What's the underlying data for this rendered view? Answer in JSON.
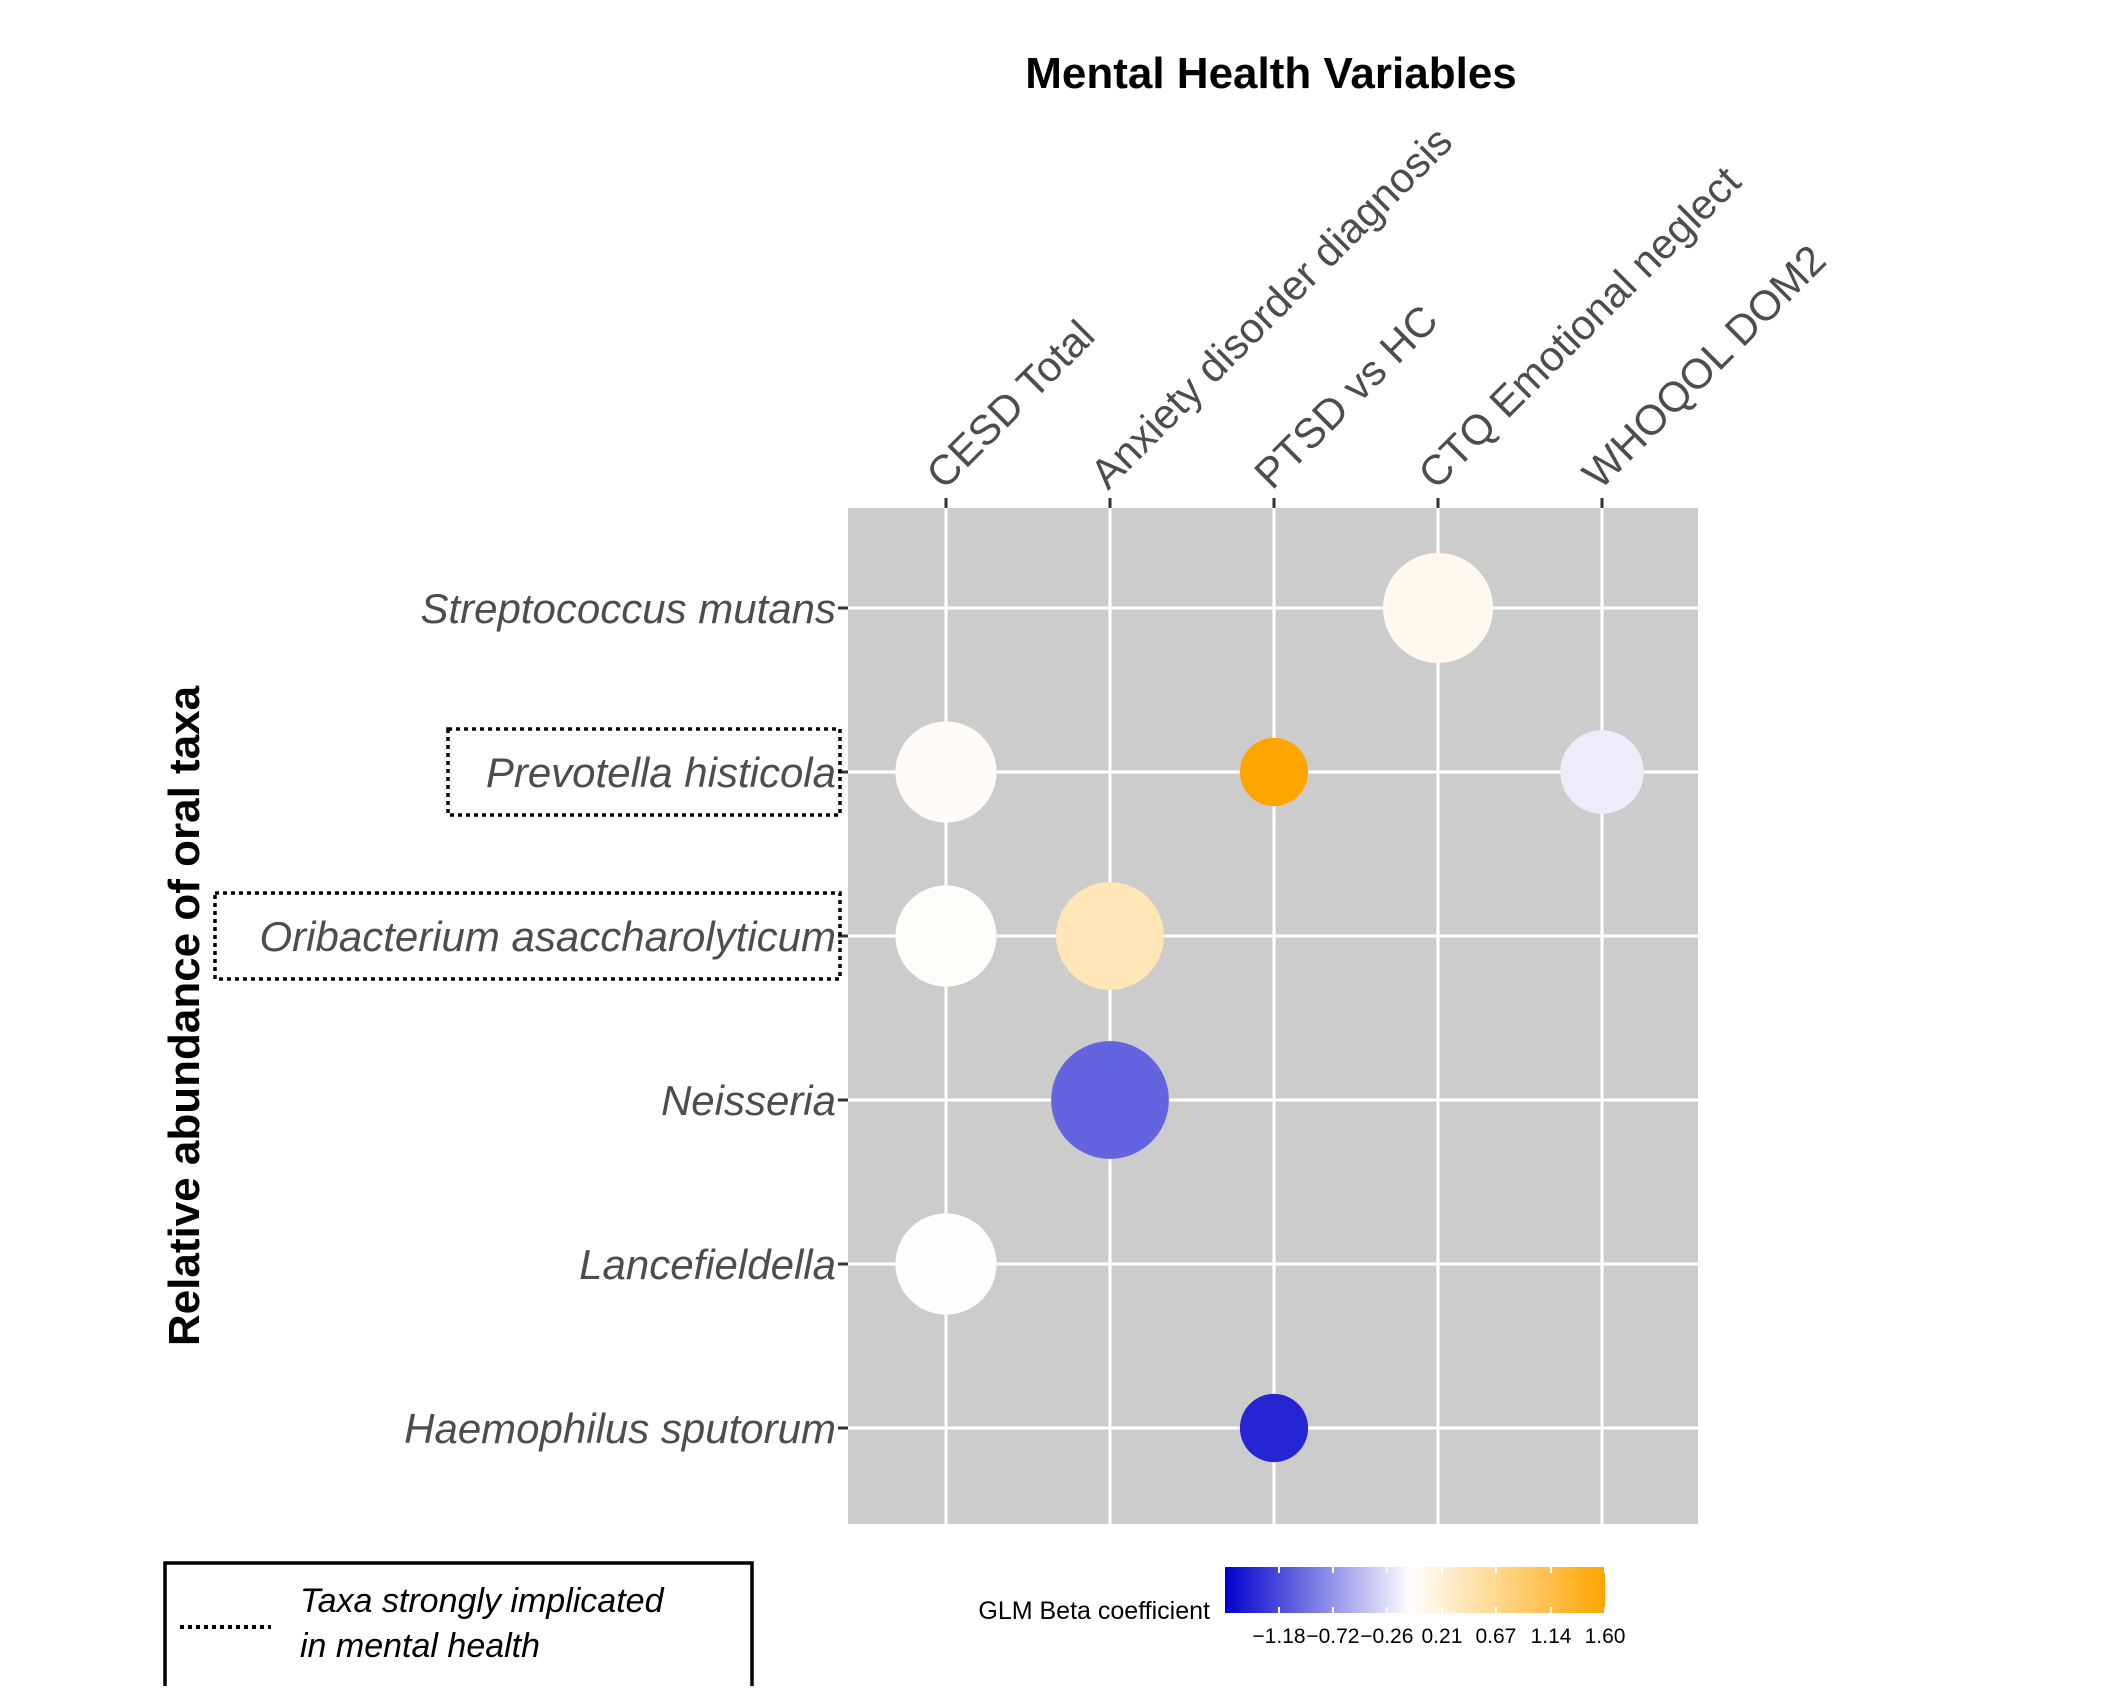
{
  "chart_data": {
    "type": "scatter",
    "title": "Mental Health Variables",
    "xlabel": "",
    "ylabel": "Relative abundance of oral taxa",
    "x_categories": [
      "CESD Total",
      "Anxiety disorder diagnosis",
      "PTSD vs HC",
      "CTQ Emotional neglect",
      "WHOQOL DOM2"
    ],
    "y_categories": [
      "Streptococcus mutans",
      "Prevotella histicola",
      "Oribacterium asaccharolyticum",
      "Neisseria",
      "Lancefieldella",
      "Haemophilus sputorum"
    ],
    "highlighted_taxa": [
      "Prevotella histicola",
      "Oribacterium asaccharolyticum"
    ],
    "points": [
      {
        "x": "CTQ Emotional neglect",
        "y": "Streptococcus mutans",
        "beta": 0.1,
        "size": 1.0
      },
      {
        "x": "CESD Total",
        "y": "Prevotella histicola",
        "beta": 0.05,
        "size": 0.92
      },
      {
        "x": "PTSD vs HC",
        "y": "Prevotella histicola",
        "beta": 1.6,
        "size": 0.62
      },
      {
        "x": "WHOQOL DOM2",
        "y": "Prevotella histicola",
        "beta": -0.12,
        "size": 0.76
      },
      {
        "x": "CESD Total",
        "y": "Oribacterium asaccharolyticum",
        "beta": 0.03,
        "size": 0.92
      },
      {
        "x": "Anxiety disorder diagnosis",
        "y": "Oribacterium asaccharolyticum",
        "beta": 0.45,
        "size": 0.98
      },
      {
        "x": "Anxiety disorder diagnosis",
        "y": "Neisseria",
        "beta": -1.0,
        "size": 1.07
      },
      {
        "x": "CESD Total",
        "y": "Lancefieldella",
        "beta": 0.01,
        "size": 0.92
      },
      {
        "x": "PTSD vs HC",
        "y": "Haemophilus sputorum",
        "beta": -1.4,
        "size": 0.62
      }
    ],
    "legend": {
      "title": "GLM Beta coefficient",
      "ticks": [
        "−1.18",
        "−0.72",
        "−0.26",
        "0.21",
        "0.67",
        "1.14",
        "1.60"
      ],
      "range": [
        -1.64,
        1.6
      ],
      "colors": {
        "low": "#0000cd",
        "mid": "#ffffff",
        "high": "#ffa500"
      }
    },
    "highlight_legend": "Taxa strongly implicated in mental health",
    "highlight_legend_lines": [
      "Taxa strongly implicated",
      "in mental health"
    ],
    "panel_color": "#cccccc",
    "grid": true
  }
}
